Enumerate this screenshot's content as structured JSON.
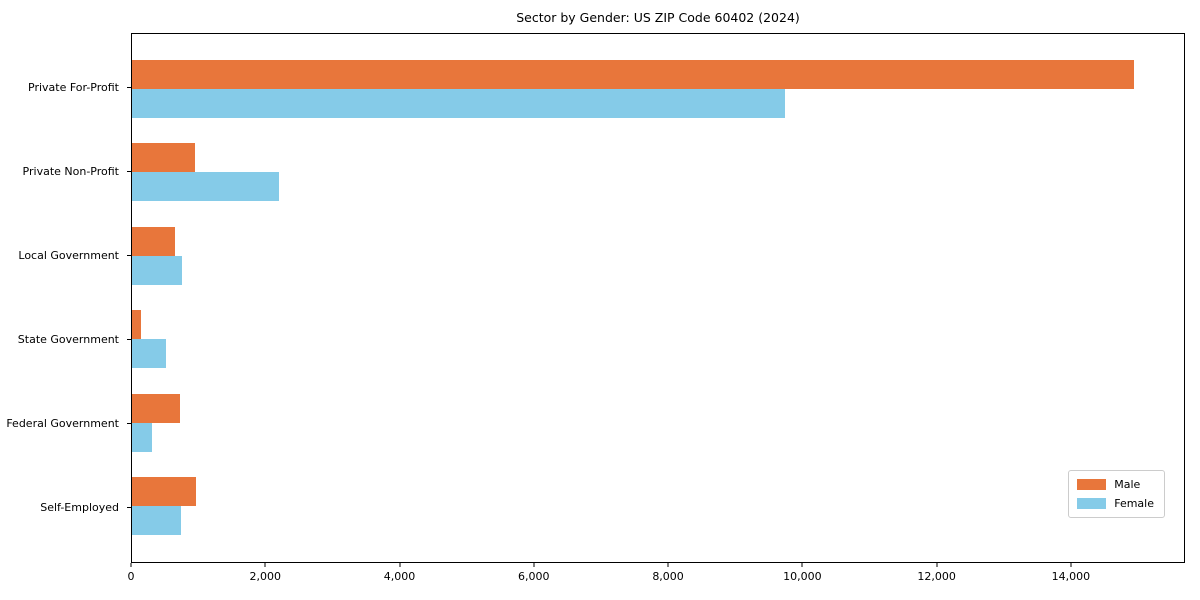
{
  "title": "Sector by Gender: US ZIP Code 60402 (2024)",
  "colors": {
    "male": "#E8763B",
    "female": "#85CBE8",
    "axis": "#000000",
    "legend_border": "#cccccc",
    "background": "#ffffff"
  },
  "chart_data": {
    "type": "bar",
    "orientation": "horizontal",
    "title": "Sector by Gender: US ZIP Code 60402 (2024)",
    "xlabel": "",
    "ylabel": "",
    "grid": false,
    "legend_position": "lower right",
    "categories": [
      "Private For-Profit",
      "Private Non-Profit",
      "Local Government",
      "State Government",
      "Federal Government",
      "Self-Employed"
    ],
    "series": [
      {
        "name": "Male",
        "color": "#E8763B",
        "values": [
          14950,
          940,
          640,
          140,
          715,
          955
        ]
      },
      {
        "name": "Female",
        "color": "#85CBE8",
        "values": [
          9750,
          2200,
          750,
          510,
          300,
          730
        ]
      }
    ],
    "xlim": [
      0,
      15700
    ],
    "xticks": [
      {
        "value": 0,
        "label": "0"
      },
      {
        "value": 2000,
        "label": "2,000"
      },
      {
        "value": 4000,
        "label": "4,000"
      },
      {
        "value": 6000,
        "label": "6,000"
      },
      {
        "value": 8000,
        "label": "8,000"
      },
      {
        "value": 10000,
        "label": "10,000"
      },
      {
        "value": 12000,
        "label": "12,000"
      },
      {
        "value": 14000,
        "label": "14,000"
      }
    ]
  }
}
